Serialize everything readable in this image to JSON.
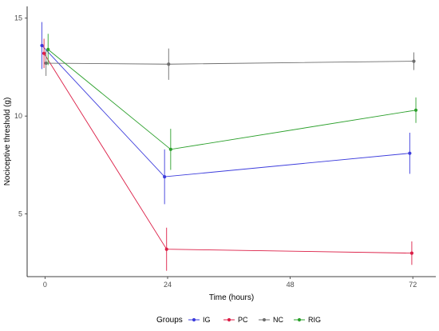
{
  "chart_data": {
    "type": "line",
    "title": "",
    "xlabel": "Time (hours)",
    "ylabel": "Nociceptive threshold (g)",
    "x": [
      0,
      24,
      72
    ],
    "x_ticks": [
      0,
      24,
      48,
      72
    ],
    "y_ticks": [
      5,
      10,
      15
    ],
    "xlim": [
      -3.5,
      76.5
    ],
    "ylim": [
      1.8,
      15.6
    ],
    "grid": false,
    "legend": {
      "title": "Groups",
      "position": "bottom"
    },
    "series": [
      {
        "name": "IG",
        "color": "#3c3cdc",
        "values": [
          13.6,
          6.9,
          8.1
        ],
        "errors": [
          1.2,
          1.4,
          1.05
        ]
      },
      {
        "name": "PC",
        "color": "#dc1e46",
        "values": [
          13.2,
          3.2,
          3.0
        ],
        "errors": [
          0.75,
          1.1,
          0.6
        ]
      },
      {
        "name": "NC",
        "color": "#6e6e6e",
        "values": [
          12.7,
          12.65,
          12.8
        ],
        "errors": [
          0.65,
          0.8,
          0.45
        ]
      },
      {
        "name": "RIG",
        "color": "#2ca02c",
        "values": [
          13.4,
          8.3,
          10.3
        ],
        "errors": [
          0.8,
          1.05,
          0.65
        ]
      }
    ]
  }
}
